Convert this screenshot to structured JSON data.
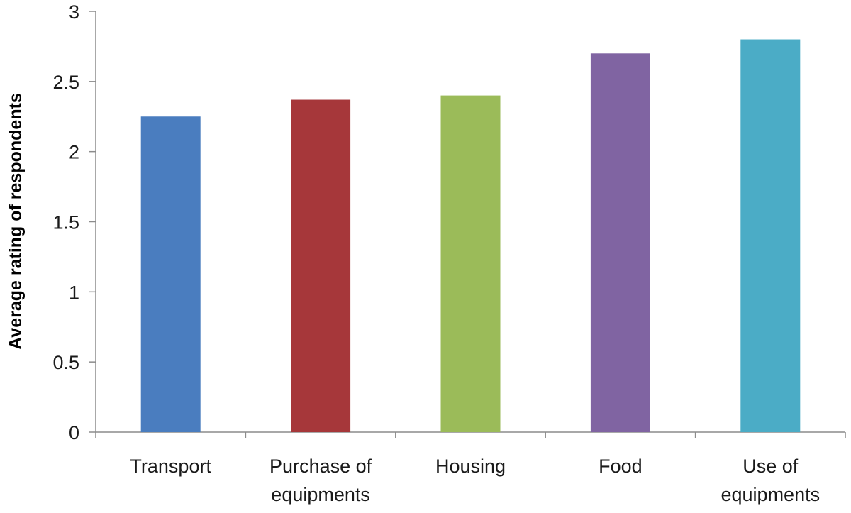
{
  "chart_data": {
    "type": "bar",
    "title": "",
    "xlabel": "",
    "ylabel": "Average rating of respondents",
    "ylim": [
      0,
      3
    ],
    "yticks": [
      "0",
      "0.5",
      "1",
      "1.5",
      "2",
      "2.5",
      "3"
    ],
    "grid": false,
    "categories": [
      [
        "Transport"
      ],
      [
        "Purchase of",
        "equipments"
      ],
      [
        "Housing"
      ],
      [
        "Food"
      ],
      [
        "Use of",
        "equipments"
      ]
    ],
    "values": [
      2.25,
      2.37,
      2.4,
      2.7,
      2.8
    ],
    "colors": [
      "#4a7dbf",
      "#a6373a",
      "#9bbb59",
      "#8064a2",
      "#4bacc6"
    ]
  }
}
